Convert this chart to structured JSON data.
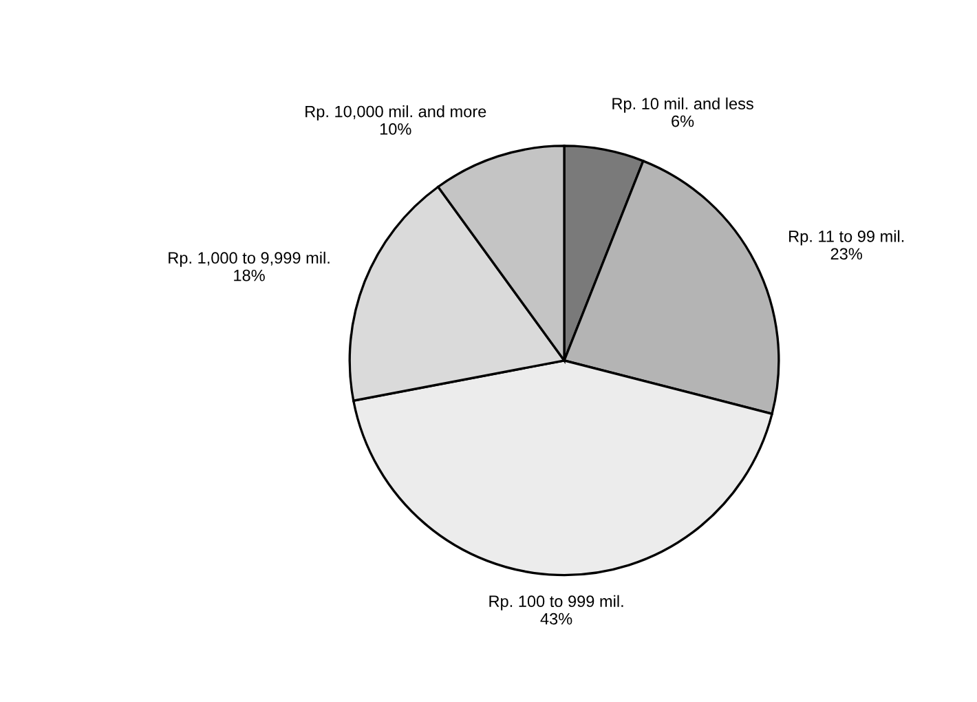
{
  "chart_data": {
    "type": "pie",
    "categories": [
      "Rp. 10 mil. and less",
      "Rp. 11 to 99 mil.",
      "Rp. 100 to 999 mil.",
      "Rp. 1,000 to 9,999 mil.",
      "Rp. 10,000 mil. and more"
    ],
    "values": [
      6,
      23,
      43,
      18,
      10
    ],
    "value_labels": [
      "6%",
      "23%",
      "43%",
      "18%",
      "10%"
    ],
    "colors": [
      "#7a7a7a",
      "#b4b4b4",
      "#ececec",
      "#dadada",
      "#c4c4c4"
    ]
  }
}
